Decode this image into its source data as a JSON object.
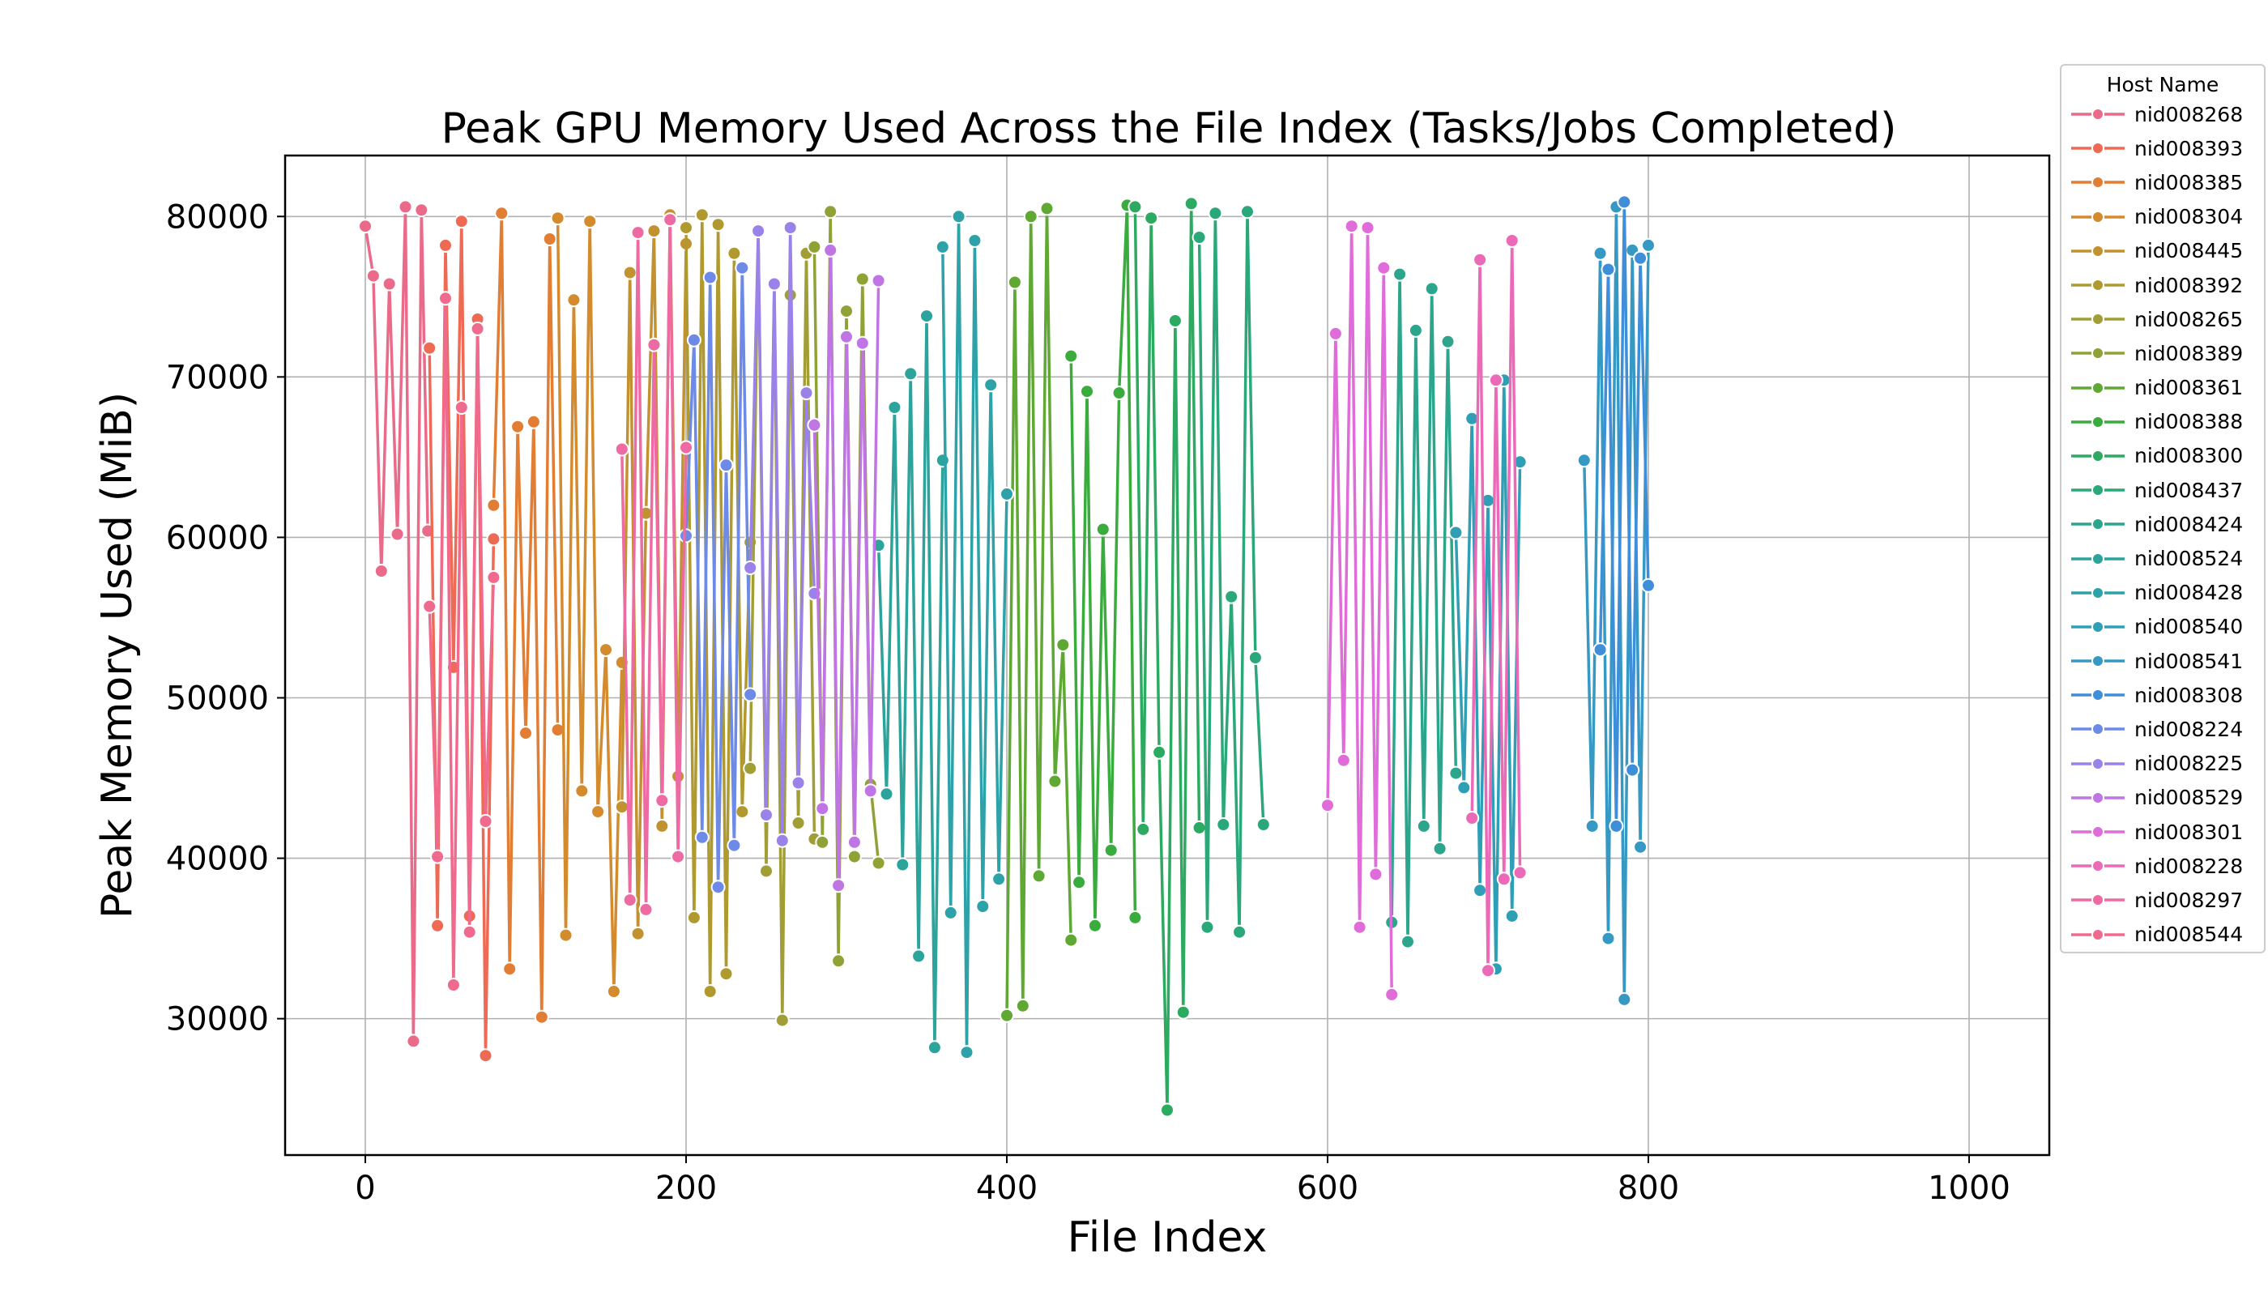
{
  "chart_data": {
    "type": "line",
    "title": "Peak GPU Memory Used Across the File Index (Tasks/Jobs Completed)",
    "xlabel": "File Index",
    "ylabel": "Peak Memory Used (MiB)",
    "xlim": [
      -50,
      1050
    ],
    "ylim": [
      21500,
      83800
    ],
    "xticks": [
      0,
      200,
      400,
      600,
      800,
      1000
    ],
    "xtick_labels": [
      "0",
      "200",
      "400",
      "600",
      "800",
      "1000"
    ],
    "yticks": [
      30000,
      40000,
      50000,
      60000,
      70000,
      80000
    ],
    "ytick_labels": [
      "30000",
      "40000",
      "50000",
      "60000",
      "70000",
      "80000"
    ],
    "grid": true,
    "marker": "circle",
    "legend": {
      "title": "Host Name",
      "placement": "outside top-right"
    },
    "series": [
      {
        "name": "nid008268",
        "color": "#ea6a8a",
        "x": [
          0,
          5,
          10,
          15,
          20,
          25,
          30,
          35,
          39
        ],
        "y": [
          79400,
          76300,
          57900,
          75800,
          60200,
          80600,
          28600,
          80400,
          60400
        ]
      },
      {
        "name": "nid008393",
        "color": "#ee6a54",
        "x": [
          40,
          45,
          50,
          55,
          60,
          65,
          70,
          75,
          80
        ],
        "y": [
          71800,
          35800,
          78200,
          51900,
          79700,
          36400,
          73600,
          27700,
          59900
        ]
      },
      {
        "name": "nid008385",
        "color": "#e27d34",
        "x": [
          80,
          85,
          90,
          95,
          100,
          105,
          110,
          115,
          120
        ],
        "y": [
          62000,
          80200,
          33100,
          66900,
          47800,
          67200,
          30100,
          78600,
          48000
        ]
      },
      {
        "name": "nid008304",
        "color": "#d48b2e",
        "x": [
          120,
          125,
          130,
          135,
          140,
          145,
          150,
          155,
          160
        ],
        "y": [
          79900,
          35200,
          74800,
          44200,
          79700,
          42900,
          53000,
          31700,
          52200
        ]
      },
      {
        "name": "nid008445",
        "color": "#c39230",
        "x": [
          160,
          165,
          170,
          175,
          180,
          185,
          190,
          195,
          200
        ],
        "y": [
          43200,
          76500,
          35300,
          61500,
          79100,
          42000,
          80100,
          45100,
          78300
        ]
      },
      {
        "name": "nid008392",
        "color": "#b09a30",
        "x": [
          200,
          205,
          210,
          215,
          220,
          225,
          230,
          235,
          240
        ],
        "y": [
          79300,
          36300,
          80100,
          31700,
          79500,
          32800,
          77700,
          42900,
          59700
        ]
      },
      {
        "name": "nid008265",
        "color": "#a19e36",
        "x": [
          240,
          245,
          250,
          255,
          260,
          265,
          270,
          275,
          280
        ],
        "y": [
          45600,
          79200,
          39200,
          75800,
          29900,
          75100,
          42200,
          77700,
          41200
        ]
      },
      {
        "name": "nid008389",
        "color": "#8fa236",
        "x": [
          280,
          285,
          290,
          295,
          300,
          305,
          310,
          315,
          320
        ],
        "y": [
          78100,
          41000,
          80300,
          33600,
          74100,
          40100,
          76100,
          44600,
          39700
        ]
      },
      {
        "name": "nid008361",
        "color": "#5fa834",
        "x": [
          400,
          405,
          410,
          415,
          420,
          425,
          430,
          435,
          440
        ],
        "y": [
          30200,
          75900,
          30800,
          80000,
          38900,
          80500,
          44800,
          53300,
          34900
        ]
      },
      {
        "name": "nid008388",
        "color": "#3aab3d",
        "x": [
          440,
          445,
          450,
          455,
          460,
          465,
          470,
          475,
          480
        ],
        "y": [
          71300,
          38500,
          69100,
          35800,
          60500,
          40500,
          69000,
          80700,
          36300
        ]
      },
      {
        "name": "nid008300",
        "color": "#2daa62",
        "x": [
          480,
          485,
          490,
          495,
          500,
          505,
          510,
          515,
          520
        ],
        "y": [
          80600,
          41800,
          79900,
          46600,
          24300,
          73500,
          30400,
          80800,
          41900
        ]
      },
      {
        "name": "nid008437",
        "color": "#2aa879",
        "x": [
          520,
          525,
          530,
          535,
          540,
          545,
          550,
          555,
          560
        ],
        "y": [
          78700,
          35700,
          80200,
          42100,
          56300,
          35400,
          80300,
          52500,
          42100
        ]
      },
      {
        "name": "nid008424",
        "color": "#2ba68d",
        "x": [
          640,
          645,
          650,
          655,
          660,
          665,
          670,
          675,
          680
        ],
        "y": [
          36000,
          76400,
          34800,
          72900,
          42000,
          75500,
          40600,
          72200,
          45300
        ]
      },
      {
        "name": "nid008524",
        "color": "#2ca39b",
        "x": [
          320,
          325,
          330,
          335,
          340,
          345,
          350,
          355,
          360
        ],
        "y": [
          59500,
          44000,
          68100,
          39600,
          70200,
          33900,
          73800,
          28200,
          64800
        ]
      },
      {
        "name": "nid008428",
        "color": "#2da2a8",
        "x": [
          360,
          365,
          370,
          375,
          380,
          385,
          390,
          395,
          400
        ],
        "y": [
          78100,
          36600,
          80000,
          27900,
          78500,
          37000,
          69500,
          38700,
          62700
        ]
      },
      {
        "name": "nid008540",
        "color": "#2e9fb5",
        "x": [
          680,
          685,
          690,
          695,
          700,
          705,
          710,
          715,
          720
        ],
        "y": [
          60300,
          44400,
          67400,
          38000,
          62300,
          33100,
          69800,
          36400,
          64700
        ]
      },
      {
        "name": "nid008541",
        "color": "#3699c4",
        "x": [
          760,
          765,
          770,
          775,
          780,
          785,
          790,
          795,
          800
        ],
        "y": [
          64800,
          42000,
          77700,
          35000,
          80600,
          31200,
          77900,
          40700,
          78200
        ]
      },
      {
        "name": "nid008308",
        "color": "#3e8ed9",
        "x": [
          770,
          775,
          780,
          785,
          790,
          795,
          800
        ],
        "y": [
          53000,
          76700,
          42000,
          80900,
          45500,
          77400,
          57000
        ]
      },
      {
        "name": "nid008224",
        "color": "#6c8ae6",
        "x": [
          200,
          205,
          210,
          215,
          220,
          225,
          230,
          235,
          240
        ],
        "y": [
          60100,
          72300,
          41300,
          76200,
          38200,
          64500,
          40800,
          76800,
          50200
        ]
      },
      {
        "name": "nid008225",
        "color": "#9a82e8",
        "x": [
          240,
          245,
          250,
          255,
          260,
          265,
          270,
          275,
          280
        ],
        "y": [
          58100,
          79100,
          42700,
          75800,
          41100,
          79300,
          44700,
          69000,
          56500
        ]
      },
      {
        "name": "nid008529",
        "color": "#c075e4",
        "x": [
          280,
          285,
          290,
          295,
          300,
          305,
          310,
          315,
          320
        ],
        "y": [
          67000,
          43100,
          77900,
          38300,
          72500,
          41000,
          72100,
          44200,
          76000
        ]
      },
      {
        "name": "nid008301",
        "color": "#df6cd9",
        "x": [
          600,
          605,
          610,
          615,
          620,
          625,
          630,
          635,
          640
        ],
        "y": [
          43300,
          72700,
          46100,
          79400,
          35700,
          79300,
          39000,
          76800,
          31500
        ]
      },
      {
        "name": "nid008228",
        "color": "#eb6ab8",
        "x": [
          690,
          695,
          700,
          705,
          710,
          715,
          720
        ],
        "y": [
          42500,
          77300,
          33000,
          69800,
          38700,
          78500,
          39100
        ]
      },
      {
        "name": "nid008297",
        "color": "#ee6aa2",
        "x": [
          160,
          165,
          170,
          175,
          180,
          185,
          190,
          195,
          200
        ],
        "y": [
          65500,
          37400,
          79000,
          36800,
          72000,
          43600,
          79800,
          40100,
          65600
        ]
      },
      {
        "name": "nid008544",
        "color": "#f06a8e",
        "x": [
          40,
          45,
          50,
          55,
          60,
          65,
          70,
          75,
          80
        ],
        "y": [
          55700,
          40100,
          74900,
          32100,
          68100,
          35400,
          73000,
          42300,
          57500
        ]
      }
    ]
  }
}
